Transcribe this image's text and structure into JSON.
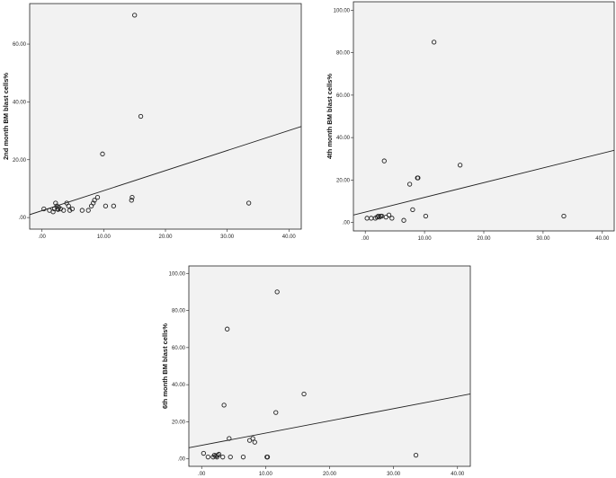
{
  "chart_data": [
    {
      "type": "scatter",
      "title": "",
      "xlabel": "",
      "ylabel": "2nd month BM blast cells%",
      "xlim": [
        -2,
        42
      ],
      "ylim": [
        -4,
        74
      ],
      "xticks": [
        ".00",
        "10.00",
        "20.00",
        "30.00",
        "40.00"
      ],
      "xtick_values": [
        0,
        10,
        20,
        30,
        40
      ],
      "yticks": [
        ".00",
        "20.00",
        "40.00",
        "60.00"
      ],
      "ytick_values": [
        0,
        20,
        40,
        60
      ],
      "grid": false,
      "points": [
        [
          0.3,
          3
        ],
        [
          1.2,
          2.5
        ],
        [
          1.8,
          2
        ],
        [
          2.0,
          3
        ],
        [
          2.2,
          5
        ],
        [
          2.4,
          4
        ],
        [
          2.5,
          3
        ],
        [
          2.6,
          2.8
        ],
        [
          2.7,
          3.5
        ],
        [
          3.0,
          3
        ],
        [
          3.5,
          2.5
        ],
        [
          4.0,
          5
        ],
        [
          4.3,
          4
        ],
        [
          4.5,
          2.5
        ],
        [
          4.9,
          3
        ],
        [
          6.5,
          2.5
        ],
        [
          7.5,
          2.5
        ],
        [
          8.0,
          4
        ],
        [
          8.3,
          5
        ],
        [
          8.5,
          6
        ],
        [
          9.0,
          7
        ],
        [
          9.8,
          22
        ],
        [
          10.3,
          4
        ],
        [
          11.6,
          4
        ],
        [
          14.5,
          6
        ],
        [
          14.6,
          7
        ],
        [
          15.0,
          70
        ],
        [
          16.0,
          35
        ],
        [
          33.5,
          5
        ]
      ],
      "fit_line": [
        [
          -2,
          1
        ],
        [
          42,
          31.5
        ]
      ]
    },
    {
      "type": "scatter",
      "title": "",
      "xlabel": "",
      "ylabel": "4th month BM blast cells%",
      "xlim": [
        -2,
        42
      ],
      "ylim": [
        -4,
        104
      ],
      "xticks": [
        ".00",
        "10.00",
        "20.00",
        "30.00",
        "40.00"
      ],
      "xtick_values": [
        0,
        10,
        20,
        30,
        40
      ],
      "yticks": [
        ".00",
        "20.00",
        "40.00",
        "60.00",
        "80.00",
        "100.00"
      ],
      "ytick_values": [
        0,
        20,
        40,
        60,
        80,
        100
      ],
      "grid": false,
      "points": [
        [
          0.3,
          2
        ],
        [
          1.0,
          2
        ],
        [
          1.7,
          2
        ],
        [
          2.0,
          2.5
        ],
        [
          2.2,
          3
        ],
        [
          2.4,
          2.5
        ],
        [
          2.6,
          3
        ],
        [
          2.8,
          3
        ],
        [
          3.2,
          29
        ],
        [
          3.5,
          2.5
        ],
        [
          4.0,
          3.5
        ],
        [
          4.5,
          2
        ],
        [
          6.5,
          1
        ],
        [
          7.5,
          18
        ],
        [
          8.0,
          6
        ],
        [
          8.8,
          21
        ],
        [
          8.9,
          21
        ],
        [
          10.2,
          3
        ],
        [
          11.6,
          85
        ],
        [
          16.0,
          27
        ],
        [
          33.5,
          3
        ]
      ],
      "fit_line": [
        [
          -2,
          3.5
        ],
        [
          42,
          34
        ]
      ]
    },
    {
      "type": "scatter",
      "title": "",
      "xlabel": "",
      "ylabel": "6th month BM blast cells%",
      "xlim": [
        -2,
        42
      ],
      "ylim": [
        -4,
        104
      ],
      "xticks": [
        ".00",
        "10.00",
        "20.00",
        "30.00",
        "40.00"
      ],
      "xtick_values": [
        0,
        10,
        20,
        30,
        40
      ],
      "yticks": [
        ".00",
        "20.00",
        "40.00",
        "60.00",
        "80.00",
        "100.00"
      ],
      "ytick_values": [
        0,
        20,
        40,
        60,
        80,
        100
      ],
      "grid": false,
      "points": [
        [
          0.3,
          3
        ],
        [
          1.0,
          1
        ],
        [
          1.8,
          1
        ],
        [
          2.0,
          2
        ],
        [
          2.2,
          1.5
        ],
        [
          2.4,
          1
        ],
        [
          2.5,
          2
        ],
        [
          2.7,
          2.5
        ],
        [
          3.5,
          29
        ],
        [
          3.3,
          1
        ],
        [
          4.0,
          70
        ],
        [
          4.3,
          11
        ],
        [
          4.5,
          1
        ],
        [
          6.5,
          1
        ],
        [
          7.5,
          10
        ],
        [
          8.0,
          11
        ],
        [
          8.3,
          9
        ],
        [
          10.2,
          1
        ],
        [
          10.3,
          1
        ],
        [
          11.6,
          25
        ],
        [
          11.8,
          90
        ],
        [
          16.0,
          35
        ],
        [
          33.5,
          2
        ]
      ],
      "fit_line": [
        [
          -2,
          6
        ],
        [
          42,
          35
        ]
      ]
    }
  ]
}
